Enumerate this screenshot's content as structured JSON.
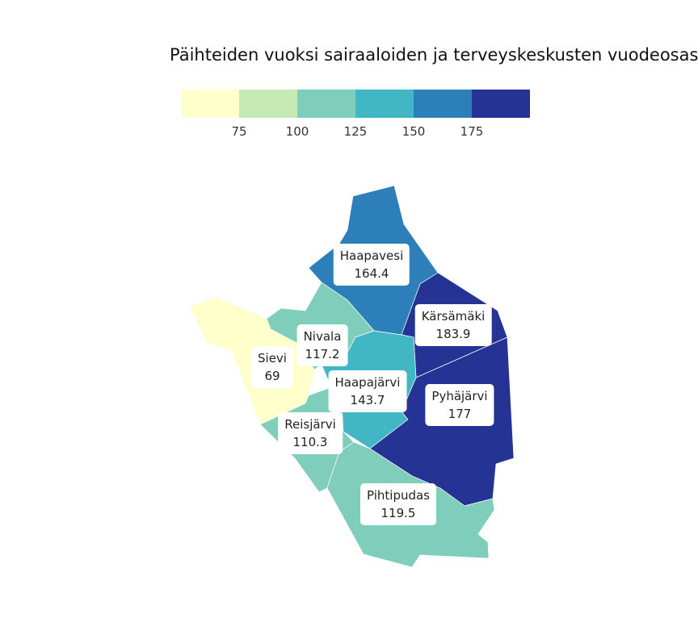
{
  "title": "Päihteiden vuoksi sairaaloiden ja terveyskeskusten vuodeosast",
  "legend": {
    "colors": [
      "#ffffcc",
      "#c7e9b4",
      "#7fcdbb",
      "#41b6c4",
      "#2c7fb8",
      "#253494"
    ],
    "ticks": [
      "75",
      "100",
      "125",
      "150",
      "175"
    ]
  },
  "regions": [
    {
      "name": "Haapavesi",
      "value": "164.4",
      "color": "#2c7fb8"
    },
    {
      "name": "Kärsämäki",
      "value": "183.9",
      "color": "#253494"
    },
    {
      "name": "Nivala",
      "value": "117.2",
      "color": "#7fcdbb"
    },
    {
      "name": "Sievi",
      "value": "69",
      "color": "#ffffcc"
    },
    {
      "name": "Haapajärvi",
      "value": "143.7",
      "color": "#41b6c4"
    },
    {
      "name": "Pyhäjärvi",
      "value": "177",
      "color": "#253494"
    },
    {
      "name": "Reisjärvi",
      "value": "110.3",
      "color": "#7fcdbb"
    },
    {
      "name": "Pihtipudas",
      "value": "119.5",
      "color": "#7fcdbb"
    }
  ]
}
